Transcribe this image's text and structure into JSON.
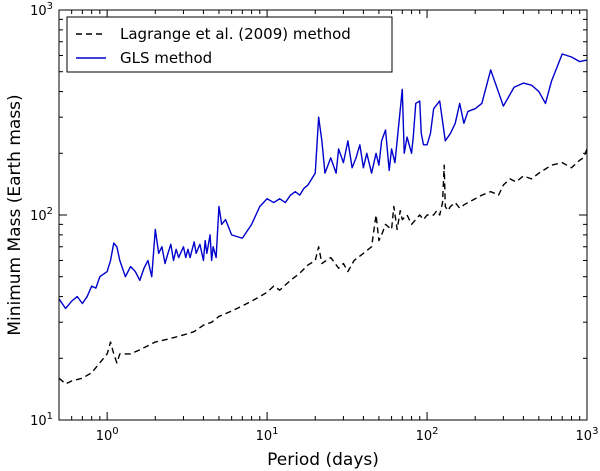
{
  "chart_data": {
    "type": "line",
    "xlabel": "Period (days)",
    "ylabel": "Minimum Mass (Earth mass)",
    "xscale": "log",
    "yscale": "log",
    "xlim": [
      0.5,
      1000
    ],
    "ylim": [
      10,
      1000
    ],
    "x_ticks": [
      {
        "value": 1,
        "base": "10",
        "exp": "0"
      },
      {
        "value": 10,
        "base": "10",
        "exp": "1"
      },
      {
        "value": 100,
        "base": "10",
        "exp": "2"
      },
      {
        "value": 1000,
        "base": "10",
        "exp": "3"
      }
    ],
    "y_ticks": [
      {
        "value": 10,
        "base": "10",
        "exp": "1"
      },
      {
        "value": 100,
        "base": "10",
        "exp": "2"
      },
      {
        "value": 1000,
        "base": "10",
        "exp": "3"
      }
    ],
    "legend_position": "top-left",
    "grid": false,
    "series": [
      {
        "name": "Lagrange et al. (2009) method",
        "style": "dashed",
        "color": "#000000",
        "points": [
          [
            0.5,
            16
          ],
          [
            0.55,
            15
          ],
          [
            0.6,
            15.5
          ],
          [
            0.7,
            16
          ],
          [
            0.8,
            17
          ],
          [
            0.9,
            19
          ],
          [
            1.0,
            21
          ],
          [
            1.05,
            24
          ],
          [
            1.1,
            21
          ],
          [
            1.15,
            19
          ],
          [
            1.2,
            21
          ],
          [
            1.4,
            21
          ],
          [
            1.6,
            22
          ],
          [
            2.0,
            24
          ],
          [
            2.5,
            25
          ],
          [
            3.0,
            26
          ],
          [
            3.5,
            27
          ],
          [
            4.0,
            29
          ],
          [
            4.5,
            30
          ],
          [
            5.0,
            32
          ],
          [
            6.0,
            34
          ],
          [
            7.0,
            36
          ],
          [
            8.0,
            38
          ],
          [
            9.0,
            40
          ],
          [
            10.0,
            42
          ],
          [
            11.0,
            45
          ],
          [
            12.0,
            43
          ],
          [
            14.0,
            48
          ],
          [
            16.0,
            52
          ],
          [
            18.0,
            57
          ],
          [
            20.0,
            60
          ],
          [
            21.0,
            70
          ],
          [
            22.0,
            58
          ],
          [
            25.0,
            62
          ],
          [
            28.0,
            55
          ],
          [
            30.0,
            58
          ],
          [
            32.0,
            53
          ],
          [
            35.0,
            60
          ],
          [
            40.0,
            65
          ],
          [
            45.0,
            70
          ],
          [
            48.0,
            100
          ],
          [
            50.0,
            75
          ],
          [
            52.0,
            80
          ],
          [
            55.0,
            90
          ],
          [
            60.0,
            85
          ],
          [
            62.0,
            110
          ],
          [
            65.0,
            85
          ],
          [
            68.0,
            105
          ],
          [
            70.0,
            95
          ],
          [
            75.0,
            100
          ],
          [
            80.0,
            90
          ],
          [
            85.0,
            95
          ],
          [
            90.0,
            100
          ],
          [
            95.0,
            95
          ],
          [
            100.0,
            100
          ],
          [
            110.0,
            100
          ],
          [
            115.0,
            105
          ],
          [
            120.0,
            100
          ],
          [
            125.0,
            115
          ],
          [
            128.0,
            175
          ],
          [
            130.0,
            110
          ],
          [
            135.0,
            105
          ],
          [
            140.0,
            110
          ],
          [
            150.0,
            115
          ],
          [
            160.0,
            108
          ],
          [
            170.0,
            112
          ],
          [
            180.0,
            115
          ],
          [
            200.0,
            120
          ],
          [
            220.0,
            125
          ],
          [
            250.0,
            130
          ],
          [
            280.0,
            125
          ],
          [
            300.0,
            140
          ],
          [
            330.0,
            150
          ],
          [
            360.0,
            145
          ],
          [
            400.0,
            155
          ],
          [
            450.0,
            150
          ],
          [
            500.0,
            160
          ],
          [
            600.0,
            175
          ],
          [
            700.0,
            180
          ],
          [
            800.0,
            170
          ],
          [
            900.0,
            185
          ],
          [
            950.0,
            190
          ],
          [
            1000.0,
            210
          ]
        ]
      },
      {
        "name": "GLS method",
        "style": "solid",
        "color": "#0000cc",
        "points": [
          [
            0.5,
            39
          ],
          [
            0.55,
            35
          ],
          [
            0.6,
            38
          ],
          [
            0.65,
            40
          ],
          [
            0.7,
            37
          ],
          [
            0.75,
            40
          ],
          [
            0.8,
            45
          ],
          [
            0.85,
            44
          ],
          [
            0.9,
            50
          ],
          [
            1.0,
            53
          ],
          [
            1.05,
            60
          ],
          [
            1.1,
            73
          ],
          [
            1.15,
            70
          ],
          [
            1.2,
            60
          ],
          [
            1.3,
            50
          ],
          [
            1.4,
            56
          ],
          [
            1.5,
            53
          ],
          [
            1.6,
            48
          ],
          [
            1.7,
            55
          ],
          [
            1.8,
            60
          ],
          [
            1.9,
            50
          ],
          [
            2.0,
            85
          ],
          [
            2.1,
            65
          ],
          [
            2.2,
            70
          ],
          [
            2.3,
            58
          ],
          [
            2.4,
            65
          ],
          [
            2.5,
            72
          ],
          [
            2.6,
            60
          ],
          [
            2.7,
            68
          ],
          [
            2.8,
            62
          ],
          [
            3.0,
            70
          ],
          [
            3.1,
            62
          ],
          [
            3.2,
            68
          ],
          [
            3.3,
            62
          ],
          [
            3.5,
            74
          ],
          [
            3.6,
            65
          ],
          [
            3.8,
            72
          ],
          [
            4.0,
            60
          ],
          [
            4.1,
            75
          ],
          [
            4.2,
            65
          ],
          [
            4.4,
            80
          ],
          [
            4.5,
            60
          ],
          [
            4.6,
            70
          ],
          [
            4.8,
            62
          ],
          [
            5.0,
            110
          ],
          [
            5.2,
            90
          ],
          [
            5.5,
            95
          ],
          [
            6.0,
            80
          ],
          [
            7.0,
            77
          ],
          [
            8.0,
            90
          ],
          [
            9.0,
            110
          ],
          [
            10.0,
            120
          ],
          [
            11.0,
            115
          ],
          [
            12.0,
            120
          ],
          [
            13.0,
            115
          ],
          [
            14.0,
            125
          ],
          [
            15.0,
            130
          ],
          [
            16.0,
            125
          ],
          [
            17.0,
            135
          ],
          [
            18.0,
            140
          ],
          [
            20.0,
            160
          ],
          [
            21.0,
            300
          ],
          [
            22.0,
            230
          ],
          [
            23.0,
            160
          ],
          [
            25.0,
            190
          ],
          [
            27.0,
            160
          ],
          [
            28.0,
            210
          ],
          [
            30.0,
            180
          ],
          [
            32.0,
            230
          ],
          [
            34.0,
            170
          ],
          [
            36.0,
            190
          ],
          [
            38.0,
            220
          ],
          [
            40.0,
            170
          ],
          [
            42.0,
            200
          ],
          [
            45.0,
            160
          ],
          [
            48.0,
            200
          ],
          [
            50.0,
            175
          ],
          [
            52.0,
            230
          ],
          [
            55.0,
            260
          ],
          [
            58.0,
            165
          ],
          [
            60.0,
            210
          ],
          [
            63.0,
            180
          ],
          [
            65.0,
            230
          ],
          [
            70.0,
            410
          ],
          [
            72.0,
            200
          ],
          [
            75.0,
            240
          ],
          [
            80.0,
            200
          ],
          [
            82.0,
            240
          ],
          [
            85.0,
            350
          ],
          [
            90.0,
            360
          ],
          [
            92.0,
            250
          ],
          [
            95.0,
            220
          ],
          [
            100.0,
            220
          ],
          [
            105.0,
            250
          ],
          [
            110.0,
            330
          ],
          [
            120.0,
            360
          ],
          [
            130.0,
            230
          ],
          [
            140.0,
            250
          ],
          [
            150.0,
            280
          ],
          [
            160.0,
            350
          ],
          [
            170.0,
            280
          ],
          [
            180.0,
            320
          ],
          [
            200.0,
            330
          ],
          [
            220.0,
            350
          ],
          [
            250.0,
            510
          ],
          [
            300.0,
            340
          ],
          [
            350.0,
            420
          ],
          [
            400.0,
            440
          ],
          [
            450.0,
            430
          ],
          [
            500.0,
            400
          ],
          [
            550.0,
            350
          ],
          [
            600.0,
            450
          ],
          [
            700.0,
            610
          ],
          [
            800.0,
            590
          ],
          [
            900.0,
            560
          ],
          [
            1000.0,
            570
          ]
        ]
      }
    ]
  }
}
